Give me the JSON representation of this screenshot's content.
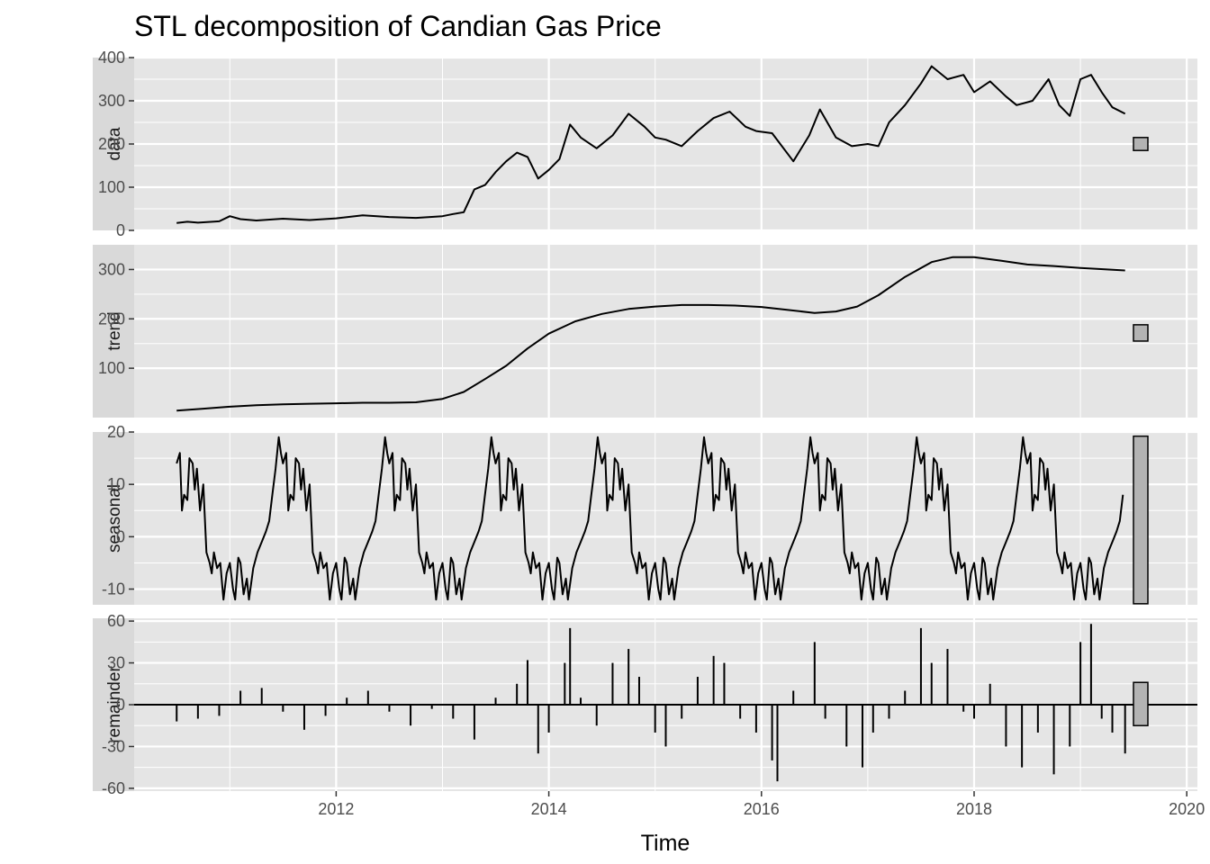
{
  "chart_data": {
    "type": "line",
    "title": "STL decomposition of Candian Gas Price",
    "xlabel": "Time",
    "x_ticks": [
      "2012",
      "2014",
      "2016",
      "2018",
      "2020"
    ],
    "x_tick_values": [
      2012,
      2014,
      2016,
      2018,
      2020
    ],
    "xlim": [
      2010.1,
      2020.1
    ],
    "grid": true,
    "colors": {
      "panel_bg": "#e5e5e5",
      "grid": "#ffffff",
      "strip_bg": "#d9d9d9",
      "line": "#000000",
      "range_bar": "#b3b3b3"
    },
    "panels": [
      {
        "label": "data",
        "kind": "line",
        "ylim": [
          0,
          400
        ],
        "y_ticks": [
          0,
          100,
          200,
          300,
          400
        ],
        "y_tick_labels": [
          "0",
          "100",
          "200",
          "300",
          "400"
        ],
        "range_bar": [
          185,
          215
        ],
        "points": [
          [
            2010.5,
            17
          ],
          [
            2010.6,
            20
          ],
          [
            2010.7,
            18
          ],
          [
            2010.9,
            21
          ],
          [
            2011.0,
            33
          ],
          [
            2011.1,
            26
          ],
          [
            2011.25,
            23
          ],
          [
            2011.5,
            27
          ],
          [
            2011.75,
            24
          ],
          [
            2012.0,
            28
          ],
          [
            2012.25,
            35
          ],
          [
            2012.5,
            31
          ],
          [
            2012.75,
            29
          ],
          [
            2013.0,
            33
          ],
          [
            2013.1,
            38
          ],
          [
            2013.2,
            42
          ],
          [
            2013.3,
            95
          ],
          [
            2013.4,
            105
          ],
          [
            2013.5,
            135
          ],
          [
            2013.6,
            160
          ],
          [
            2013.7,
            180
          ],
          [
            2013.8,
            170
          ],
          [
            2013.9,
            120
          ],
          [
            2014.0,
            140
          ],
          [
            2014.1,
            165
          ],
          [
            2014.2,
            245
          ],
          [
            2014.3,
            215
          ],
          [
            2014.45,
            190
          ],
          [
            2014.6,
            220
          ],
          [
            2014.75,
            270
          ],
          [
            2014.9,
            240
          ],
          [
            2015.0,
            215
          ],
          [
            2015.1,
            210
          ],
          [
            2015.25,
            195
          ],
          [
            2015.4,
            230
          ],
          [
            2015.55,
            260
          ],
          [
            2015.7,
            275
          ],
          [
            2015.85,
            240
          ],
          [
            2015.95,
            230
          ],
          [
            2016.1,
            225
          ],
          [
            2016.3,
            160
          ],
          [
            2016.45,
            220
          ],
          [
            2016.55,
            280
          ],
          [
            2016.7,
            215
          ],
          [
            2016.85,
            195
          ],
          [
            2017.0,
            200
          ],
          [
            2017.1,
            195
          ],
          [
            2017.2,
            250
          ],
          [
            2017.35,
            290
          ],
          [
            2017.5,
            340
          ],
          [
            2017.6,
            380
          ],
          [
            2017.75,
            350
          ],
          [
            2017.9,
            360
          ],
          [
            2018.0,
            320
          ],
          [
            2018.15,
            345
          ],
          [
            2018.3,
            310
          ],
          [
            2018.4,
            290
          ],
          [
            2018.55,
            300
          ],
          [
            2018.7,
            350
          ],
          [
            2018.8,
            290
          ],
          [
            2018.9,
            265
          ],
          [
            2019.0,
            350
          ],
          [
            2019.1,
            360
          ],
          [
            2019.2,
            320
          ],
          [
            2019.3,
            285
          ],
          [
            2019.42,
            270
          ]
        ]
      },
      {
        "label": "trend",
        "kind": "line",
        "ylim": [
          0,
          350
        ],
        "y_ticks": [
          100,
          200,
          300
        ],
        "y_tick_labels": [
          "100",
          "200",
          "300"
        ],
        "range_bar": [
          155,
          188
        ],
        "points": [
          [
            2010.5,
            14
          ],
          [
            2010.75,
            18
          ],
          [
            2011.0,
            22
          ],
          [
            2011.25,
            25
          ],
          [
            2011.5,
            27
          ],
          [
            2011.75,
            28
          ],
          [
            2012.0,
            29
          ],
          [
            2012.25,
            30
          ],
          [
            2012.5,
            30
          ],
          [
            2012.75,
            31
          ],
          [
            2012.9,
            35
          ],
          [
            2013.0,
            38
          ],
          [
            2013.2,
            52
          ],
          [
            2013.4,
            78
          ],
          [
            2013.6,
            105
          ],
          [
            2013.8,
            140
          ],
          [
            2014.0,
            170
          ],
          [
            2014.25,
            195
          ],
          [
            2014.5,
            210
          ],
          [
            2014.75,
            220
          ],
          [
            2015.0,
            225
          ],
          [
            2015.25,
            228
          ],
          [
            2015.5,
            228
          ],
          [
            2015.75,
            227
          ],
          [
            2016.0,
            224
          ],
          [
            2016.25,
            218
          ],
          [
            2016.5,
            212
          ],
          [
            2016.7,
            215
          ],
          [
            2016.9,
            225
          ],
          [
            2017.1,
            248
          ],
          [
            2017.35,
            285
          ],
          [
            2017.6,
            315
          ],
          [
            2017.8,
            325
          ],
          [
            2018.0,
            325
          ],
          [
            2018.25,
            318
          ],
          [
            2018.5,
            310
          ],
          [
            2018.75,
            307
          ],
          [
            2019.0,
            303
          ],
          [
            2019.25,
            300
          ],
          [
            2019.42,
            298
          ]
        ]
      },
      {
        "label": "seasonal",
        "kind": "line",
        "ylim": [
          -13,
          20
        ],
        "y_ticks": [
          -10,
          0,
          10,
          20
        ],
        "y_tick_labels": [
          "-10",
          "0",
          "10",
          "20"
        ],
        "range_bar": [
          -12.8,
          19.2
        ],
        "period": 1.0,
        "start": 2010.5,
        "end": 2019.42,
        "one_year_shape": [
          [
            0.0,
            14
          ],
          [
            0.03,
            16
          ],
          [
            0.05,
            5
          ],
          [
            0.07,
            8
          ],
          [
            0.1,
            7
          ],
          [
            0.12,
            15
          ],
          [
            0.15,
            14
          ],
          [
            0.17,
            9
          ],
          [
            0.19,
            13
          ],
          [
            0.22,
            5
          ],
          [
            0.25,
            10
          ],
          [
            0.28,
            -3
          ],
          [
            0.31,
            -5
          ],
          [
            0.33,
            -7
          ],
          [
            0.35,
            -3
          ],
          [
            0.38,
            -6
          ],
          [
            0.41,
            -5
          ],
          [
            0.44,
            -12
          ],
          [
            0.47,
            -7
          ],
          [
            0.5,
            -5
          ],
          [
            0.53,
            -10
          ],
          [
            0.55,
            -12
          ],
          [
            0.58,
            -4
          ],
          [
            0.6,
            -5
          ],
          [
            0.63,
            -11
          ],
          [
            0.66,
            -8
          ],
          [
            0.68,
            -12
          ],
          [
            0.72,
            -6
          ],
          [
            0.76,
            -3
          ],
          [
            0.8,
            -1
          ],
          [
            0.84,
            1
          ],
          [
            0.87,
            3
          ],
          [
            0.9,
            8
          ],
          [
            0.93,
            13
          ],
          [
            0.96,
            19
          ],
          [
            0.98,
            16
          ],
          [
            1.0,
            14
          ]
        ]
      },
      {
        "label": "remainder",
        "kind": "bars",
        "ylim": [
          -62,
          62
        ],
        "y_ticks": [
          -60,
          -30,
          0,
          30,
          60
        ],
        "y_tick_labels": [
          "-60",
          "-30",
          "0",
          "30",
          "60"
        ],
        "range_bar": [
          -15,
          16
        ],
        "points": [
          [
            2010.5,
            -12
          ],
          [
            2010.7,
            -10
          ],
          [
            2010.9,
            -8
          ],
          [
            2011.1,
            10
          ],
          [
            2011.3,
            12
          ],
          [
            2011.5,
            -5
          ],
          [
            2011.7,
            -18
          ],
          [
            2011.9,
            -8
          ],
          [
            2012.1,
            5
          ],
          [
            2012.3,
            10
          ],
          [
            2012.5,
            -5
          ],
          [
            2012.7,
            -15
          ],
          [
            2012.9,
            -3
          ],
          [
            2013.1,
            -10
          ],
          [
            2013.3,
            -25
          ],
          [
            2013.5,
            5
          ],
          [
            2013.7,
            15
          ],
          [
            2013.8,
            32
          ],
          [
            2013.9,
            -35
          ],
          [
            2014.0,
            -20
          ],
          [
            2014.15,
            30
          ],
          [
            2014.2,
            55
          ],
          [
            2014.3,
            5
          ],
          [
            2014.45,
            -15
          ],
          [
            2014.6,
            30
          ],
          [
            2014.75,
            40
          ],
          [
            2014.85,
            20
          ],
          [
            2015.0,
            -20
          ],
          [
            2015.1,
            -30
          ],
          [
            2015.25,
            -10
          ],
          [
            2015.4,
            20
          ],
          [
            2015.55,
            35
          ],
          [
            2015.65,
            30
          ],
          [
            2015.8,
            -10
          ],
          [
            2015.95,
            -20
          ],
          [
            2016.1,
            -40
          ],
          [
            2016.15,
            -55
          ],
          [
            2016.3,
            10
          ],
          [
            2016.5,
            45
          ],
          [
            2016.6,
            -10
          ],
          [
            2016.8,
            -30
          ],
          [
            2016.95,
            -45
          ],
          [
            2017.05,
            -20
          ],
          [
            2017.2,
            -10
          ],
          [
            2017.35,
            10
          ],
          [
            2017.5,
            55
          ],
          [
            2017.6,
            30
          ],
          [
            2017.75,
            40
          ],
          [
            2017.9,
            -5
          ],
          [
            2018.0,
            -10
          ],
          [
            2018.15,
            15
          ],
          [
            2018.3,
            -30
          ],
          [
            2018.45,
            -45
          ],
          [
            2018.6,
            -20
          ],
          [
            2018.75,
            -50
          ],
          [
            2018.9,
            -30
          ],
          [
            2019.0,
            45
          ],
          [
            2019.1,
            58
          ],
          [
            2019.2,
            -10
          ],
          [
            2019.3,
            -20
          ],
          [
            2019.42,
            -35
          ]
        ]
      }
    ]
  }
}
